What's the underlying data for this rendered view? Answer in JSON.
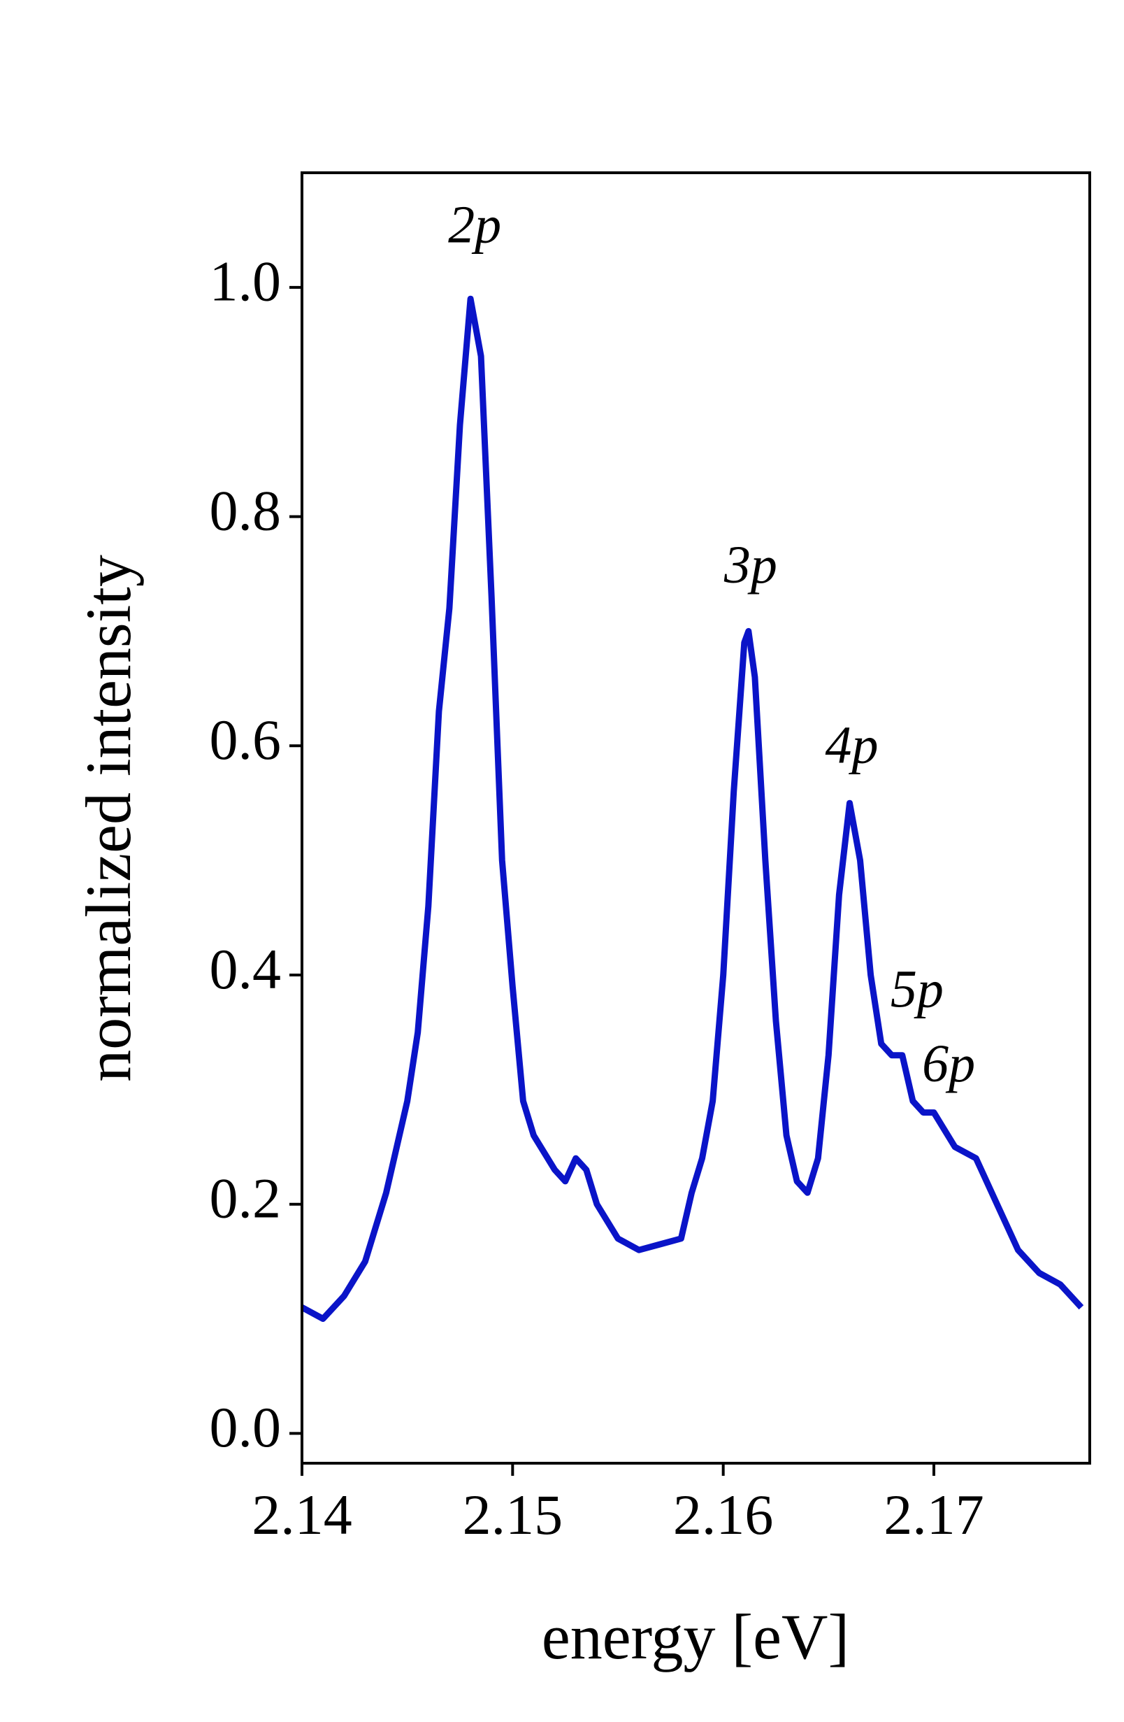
{
  "chart_data": {
    "type": "line",
    "xlabel": "energy [eV]",
    "ylabel": "normalized intensity",
    "xlim": [
      2.14,
      2.1774
    ],
    "ylim": [
      -0.026,
      1.1
    ],
    "xticks": [
      2.14,
      2.15,
      2.16,
      2.17
    ],
    "yticks": [
      {
        "value": 0,
        "label": "0.0"
      },
      0.2,
      0.4,
      0.6,
      0.8,
      {
        "value": 1,
        "label": "1.0"
      }
    ],
    "x": [
      2.14,
      2.141,
      2.142,
      2.143,
      2.144,
      2.145,
      2.1455,
      2.146,
      2.1465,
      2.147,
      2.1475,
      2.148,
      2.1485,
      2.149,
      2.1495,
      2.15,
      2.1505,
      2.151,
      2.152,
      2.1525,
      2.153,
      2.1535,
      2.154,
      2.155,
      2.156,
      2.157,
      2.158,
      2.1585,
      2.159,
      2.1595,
      2.16,
      2.1605,
      2.161,
      2.1612,
      2.1615,
      2.162,
      2.1625,
      2.163,
      2.1635,
      2.164,
      2.1645,
      2.165,
      2.1655,
      2.166,
      2.1665,
      2.167,
      2.1675,
      2.168,
      2.1685,
      2.169,
      2.1695,
      2.17,
      2.171,
      2.172,
      2.173,
      2.174,
      2.175,
      2.176,
      2.177
    ],
    "series": [
      {
        "color": "#0a14c8",
        "values": [
          0.11,
          0.1,
          0.12,
          0.15,
          0.21,
          0.29,
          0.35,
          0.46,
          0.63,
          0.72,
          0.88,
          0.99,
          0.94,
          0.73,
          0.5,
          0.39,
          0.29,
          0.26,
          0.23,
          0.22,
          0.24,
          0.23,
          0.2,
          0.17,
          0.16,
          0.165,
          0.17,
          0.21,
          0.24,
          0.29,
          0.4,
          0.56,
          0.69,
          0.7,
          0.66,
          0.5,
          0.36,
          0.26,
          0.22,
          0.21,
          0.24,
          0.33,
          0.47,
          0.55,
          0.5,
          0.4,
          0.34,
          0.33,
          0.33,
          0.29,
          0.28,
          0.28,
          0.25,
          0.24,
          0.2,
          0.16,
          0.14,
          0.13,
          0.11
        ]
      }
    ],
    "annotations": [
      {
        "text": "2p",
        "x": 2.1482,
        "y": 1.05
      },
      {
        "text": "3p",
        "x": 2.1613,
        "y": 0.753
      },
      {
        "text": "4p",
        "x": 2.1661,
        "y": 0.596
      },
      {
        "text": "5p",
        "x": 2.1692,
        "y": 0.383
      },
      {
        "text": "6p",
        "x": 2.1707,
        "y": 0.318
      }
    ]
  }
}
